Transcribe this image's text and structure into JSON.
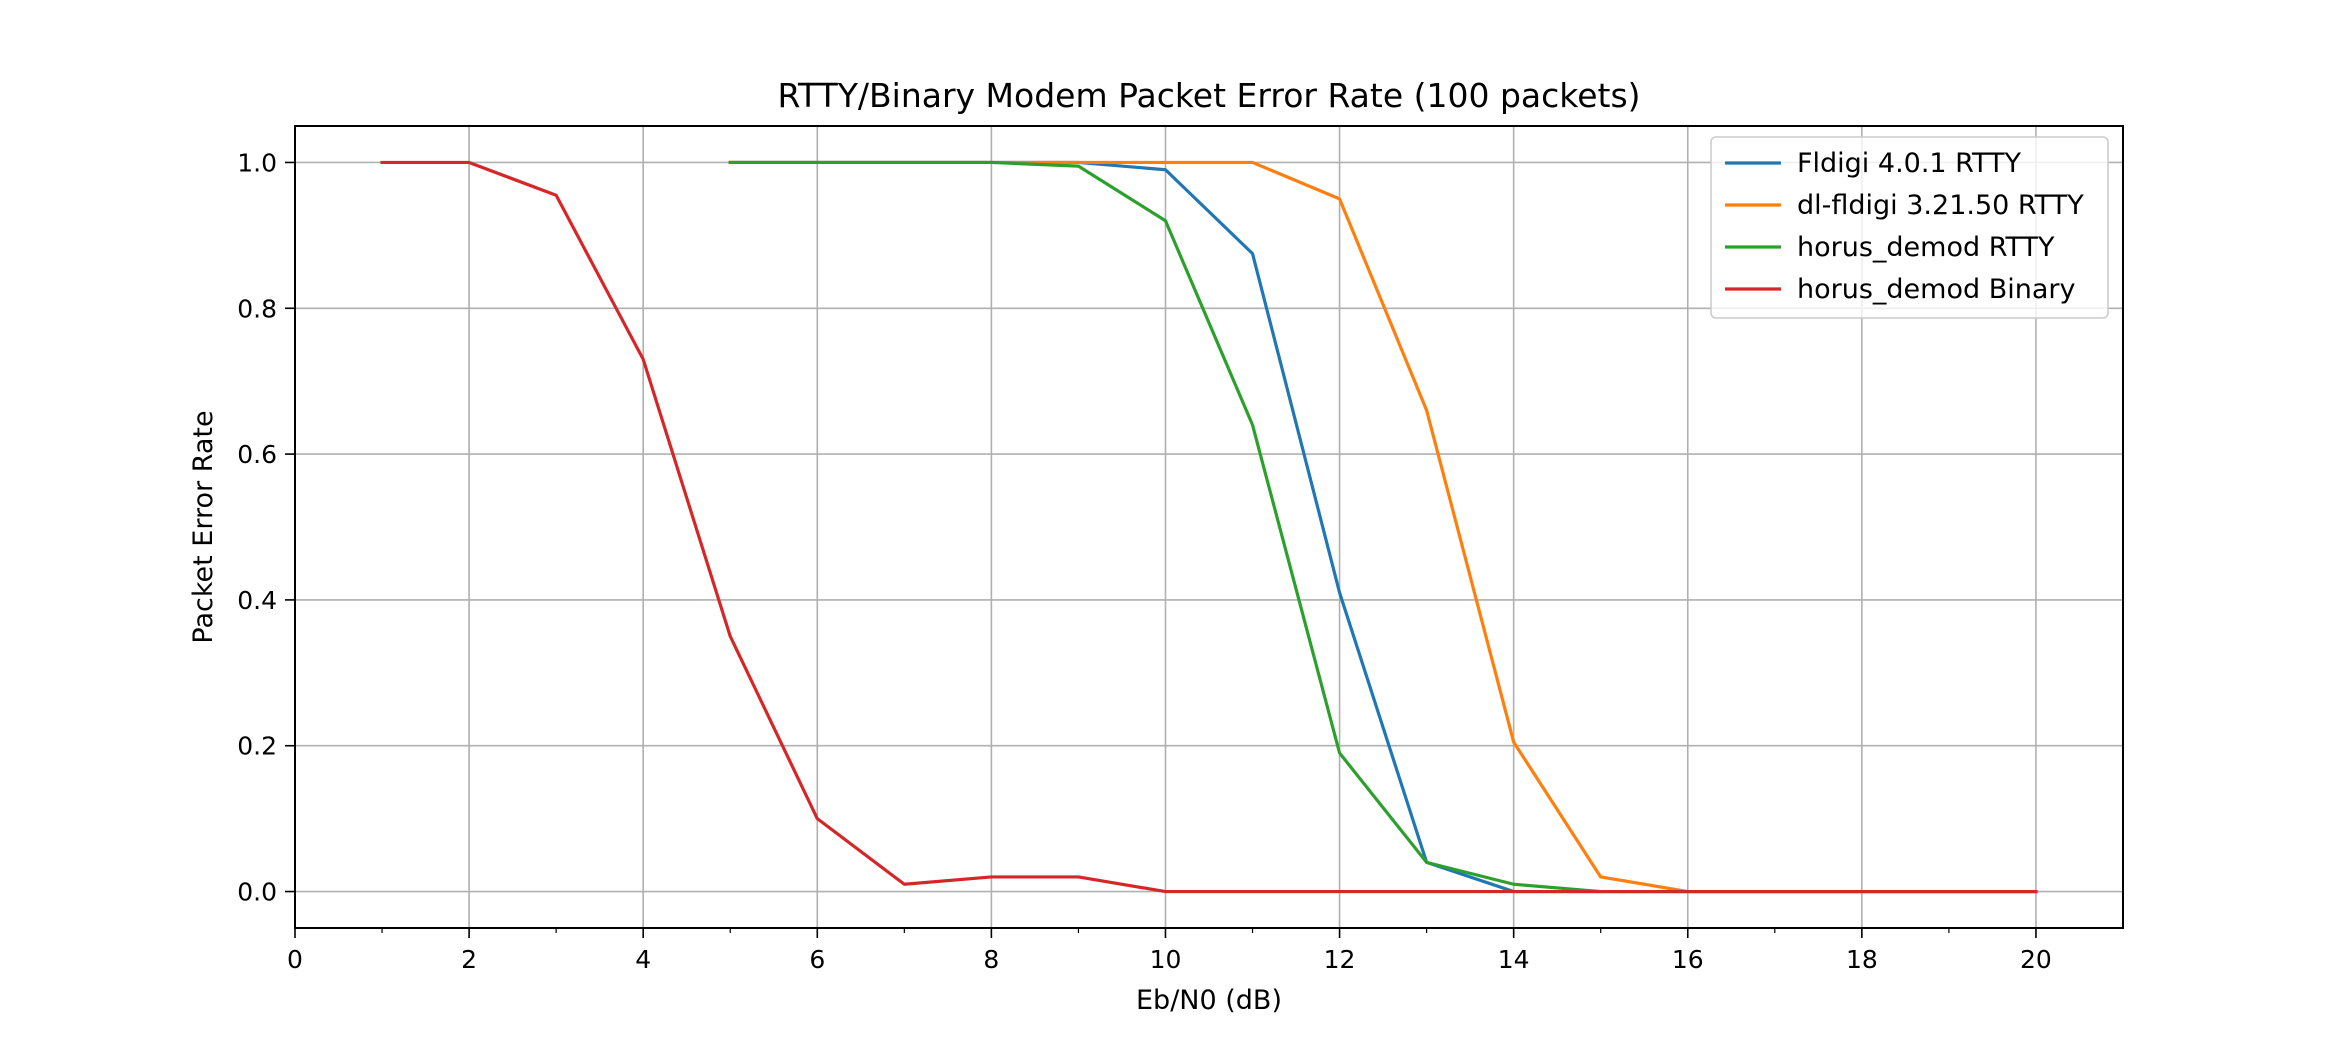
{
  "chart_data": {
    "type": "line",
    "title": "RTTY/Binary Modem Packet Error Rate (100 packets)",
    "xlabel": "Eb/N0 (dB)",
    "ylabel": "Packet Error Rate",
    "xlim": [
      0,
      21
    ],
    "ylim": [
      -0.05,
      1.05
    ],
    "xticks": [
      0,
      2,
      4,
      6,
      8,
      10,
      12,
      14,
      16,
      18,
      20
    ],
    "xtick_labels": [
      "0",
      "2",
      "4",
      "6",
      "8",
      "10",
      "12",
      "14",
      "16",
      "18",
      "20"
    ],
    "xminor_ticks": [
      1,
      3,
      5,
      7,
      9,
      11,
      13,
      15,
      17,
      19
    ],
    "yticks": [
      0.0,
      0.2,
      0.4,
      0.6,
      0.8,
      1.0
    ],
    "ytick_labels": [
      "0.0",
      "0.2",
      "0.4",
      "0.6",
      "0.8",
      "1.0"
    ],
    "grid": true,
    "legend_position": "top-right",
    "series": [
      {
        "name": "Fldigi 4.0.1 RTTY",
        "color": "#1f77b4",
        "x": [
          5,
          6,
          7,
          8,
          9,
          10,
          11,
          12,
          13,
          14,
          15,
          16,
          17,
          18,
          19,
          20
        ],
        "y": [
          1.0,
          1.0,
          1.0,
          1.0,
          1.0,
          0.99,
          0.875,
          0.41,
          0.04,
          0.0,
          0.0,
          0.0,
          0.0,
          0.0,
          0.0,
          0.0
        ]
      },
      {
        "name": "dl-fldigi 3.21.50 RTTY",
        "color": "#ff7f0e",
        "x": [
          5,
          6,
          7,
          8,
          9,
          10,
          11,
          12,
          13,
          14,
          15,
          16,
          17,
          18,
          19,
          20
        ],
        "y": [
          1.0,
          1.0,
          1.0,
          1.0,
          1.0,
          1.0,
          1.0,
          0.95,
          0.66,
          0.205,
          0.02,
          0.0,
          0.0,
          0.0,
          0.0,
          0.0
        ]
      },
      {
        "name": "horus_demod RTTY",
        "color": "#2ca02c",
        "x": [
          5,
          6,
          7,
          8,
          9,
          10,
          11,
          12,
          13,
          14,
          15,
          16,
          17,
          18,
          19,
          20
        ],
        "y": [
          1.0,
          1.0,
          1.0,
          1.0,
          0.995,
          0.92,
          0.64,
          0.19,
          0.04,
          0.01,
          0.0,
          0.0,
          0.0,
          0.0,
          0.0,
          0.0
        ]
      },
      {
        "name": "horus_demod Binary",
        "color": "#d62728",
        "x": [
          1,
          2,
          3,
          4,
          5,
          6,
          7,
          8,
          9,
          10,
          11,
          12,
          13,
          14,
          15,
          16,
          17,
          18,
          19,
          20
        ],
        "y": [
          1.0,
          1.0,
          0.955,
          0.73,
          0.35,
          0.1,
          0.01,
          0.02,
          0.02,
          0.0,
          0.0,
          0.0,
          0.0,
          0.0,
          0.0,
          0.0,
          0.0,
          0.0,
          0.0,
          0.0
        ]
      }
    ]
  }
}
